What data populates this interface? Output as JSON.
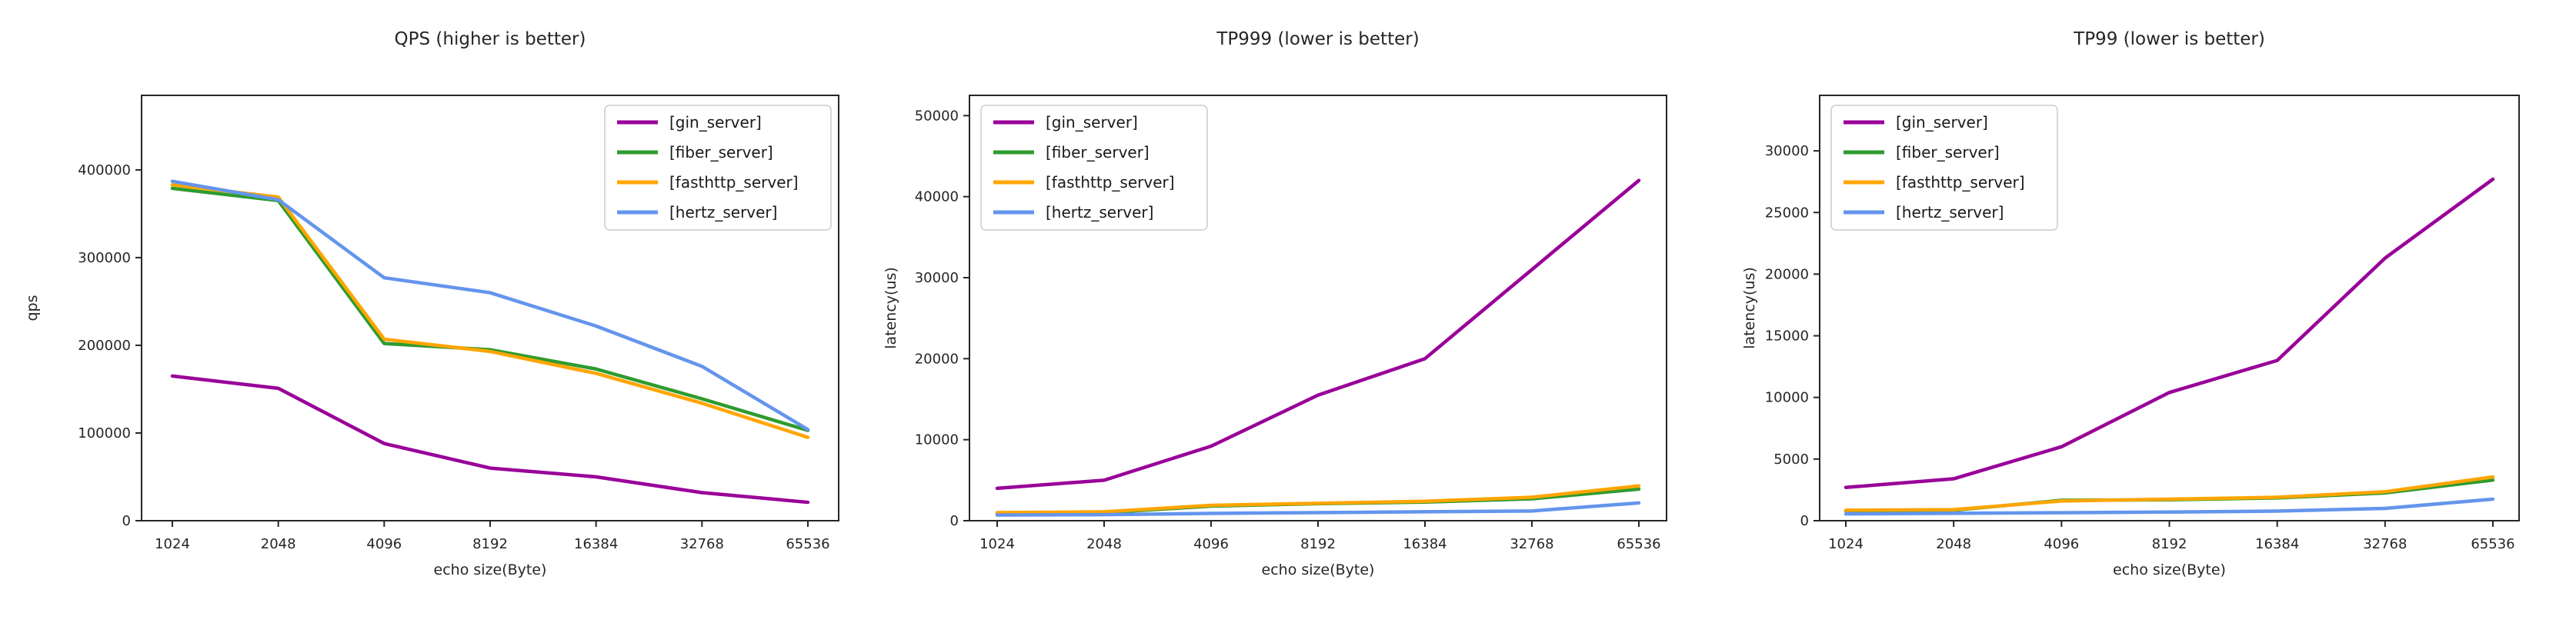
{
  "page": {
    "background": "#ffffff",
    "description": "Benchmark comparison of Go HTTP server frameworks"
  },
  "style": {
    "axis_color": "#262626",
    "text_color": "#262626",
    "legend_border_color": "#cccccc",
    "legend_background": "#ffffff"
  },
  "chart_data": [
    {
      "type": "line",
      "title": "QPS (higher is better)",
      "xlabel": "echo size(Byte)",
      "ylabel": "qps",
      "categories": [
        "1024",
        "2048",
        "4096",
        "8192",
        "16384",
        "32768",
        "65536"
      ],
      "yticks": [
        0,
        100000,
        200000,
        300000,
        400000
      ],
      "ylim": [
        0,
        485000
      ],
      "grid": false,
      "legend_position": "top-right",
      "series": [
        {
          "name": "[gin_server]",
          "color": "#990099",
          "values": [
            165000,
            151000,
            88000,
            60000,
            50000,
            32000,
            21000
          ]
        },
        {
          "name": "[fiber_server]",
          "color": "#2e9b2e",
          "values": [
            379000,
            365000,
            202000,
            195000,
            173000,
            139000,
            103000
          ]
        },
        {
          "name": "[fasthttp_server]",
          "color": "#ffa500",
          "values": [
            383000,
            369000,
            207000,
            193000,
            168000,
            134000,
            95000
          ]
        },
        {
          "name": "[hertz_server]",
          "color": "#6495ed",
          "values": [
            387000,
            366000,
            277000,
            260000,
            222000,
            176000,
            104000
          ]
        }
      ]
    },
    {
      "type": "line",
      "title": "TP999 (lower is better)",
      "xlabel": "echo size(Byte)",
      "ylabel": "latency(us)",
      "categories": [
        "1024",
        "2048",
        "4096",
        "8192",
        "16384",
        "32768",
        "65536"
      ],
      "yticks": [
        0,
        10000,
        20000,
        30000,
        40000,
        50000
      ],
      "ylim": [
        0,
        52500
      ],
      "grid": false,
      "legend_position": "top-left",
      "series": [
        {
          "name": "[gin_server]",
          "color": "#990099",
          "values": [
            4000,
            5000,
            9200,
            15500,
            20000,
            31000,
            42000
          ]
        },
        {
          "name": "[fiber_server]",
          "color": "#2e9b2e",
          "values": [
            900,
            1000,
            1800,
            2100,
            2300,
            2700,
            3900
          ]
        },
        {
          "name": "[fasthttp_server]",
          "color": "#ffa500",
          "values": [
            1000,
            1100,
            1900,
            2150,
            2400,
            2900,
            4300
          ]
        },
        {
          "name": "[hertz_server]",
          "color": "#6495ed",
          "values": [
            700,
            750,
            900,
            1000,
            1100,
            1200,
            2200
          ]
        }
      ]
    },
    {
      "type": "line",
      "title": "TP99 (lower is better)",
      "xlabel": "echo size(Byte)",
      "ylabel": "latency(us)",
      "categories": [
        "1024",
        "2048",
        "4096",
        "8192",
        "16384",
        "32768",
        "65536"
      ],
      "yticks": [
        0,
        5000,
        10000,
        15000,
        20000,
        25000,
        30000
      ],
      "ylim": [
        0,
        34500
      ],
      "grid": false,
      "legend_position": "top-left",
      "series": [
        {
          "name": "[gin_server]",
          "color": "#990099",
          "values": [
            2700,
            3400,
            6000,
            10400,
            13000,
            21300,
            27700
          ]
        },
        {
          "name": "[fiber_server]",
          "color": "#2e9b2e",
          "values": [
            800,
            850,
            1650,
            1700,
            1850,
            2250,
            3300
          ]
        },
        {
          "name": "[fasthttp_server]",
          "color": "#ffa500",
          "values": [
            850,
            900,
            1600,
            1750,
            1900,
            2350,
            3550
          ]
        },
        {
          "name": "[hertz_server]",
          "color": "#6495ed",
          "values": [
            550,
            600,
            650,
            700,
            780,
            1000,
            1750
          ]
        }
      ]
    }
  ]
}
